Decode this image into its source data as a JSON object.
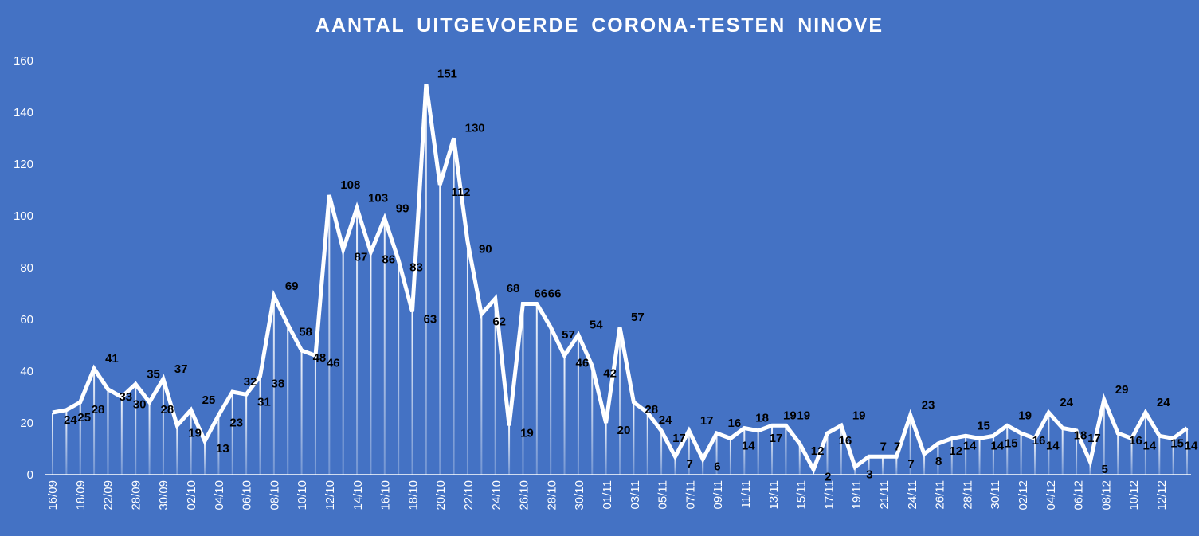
{
  "chart_data": {
    "type": "line",
    "title": "AANTAL UITGEVOERDE  CORONA-TESTEN NINOVE",
    "xlabel": "",
    "ylabel": "",
    "ylim": [
      0,
      160
    ],
    "yticks": [
      0,
      20,
      40,
      60,
      80,
      100,
      120,
      140,
      160
    ],
    "grid": false,
    "legend": "none",
    "colors": {
      "background": "#4472C4",
      "line": "#FFFFFF",
      "labels": "#000000",
      "axis_text": "#FFFFFF"
    },
    "x_tick_labels": [
      "16/09",
      "18/09",
      "22/09",
      "28/09",
      "30/09",
      "02/10",
      "04/10",
      "06/10",
      "08/10",
      "10/10",
      "12/10",
      "14/10",
      "16/10",
      "18/10",
      "20/10",
      "22/10",
      "24/10",
      "26/10",
      "28/10",
      "30/10",
      "01/11",
      "03/11",
      "05/11",
      "07/11",
      "09/11",
      "11/11",
      "13/11",
      "15/11",
      "17/11",
      "19/11",
      "21/11",
      "24/11",
      "26/11",
      "28/11",
      "30/11",
      "02/12",
      "04/12",
      "06/12",
      "08/12",
      "10/12",
      "12/12"
    ],
    "values": [
      24,
      25,
      28,
      41,
      33,
      30,
      35,
      28,
      37,
      19,
      25,
      13,
      23,
      32,
      31,
      38,
      69,
      58,
      48,
      46,
      108,
      87,
      103,
      86,
      99,
      83,
      63,
      151,
      112,
      130,
      90,
      62,
      68,
      19,
      66,
      66,
      57,
      46,
      54,
      42,
      20,
      57,
      28,
      24,
      17,
      7,
      17,
      6,
      16,
      14,
      18,
      17,
      19,
      19,
      12,
      2,
      16,
      19,
      3,
      7,
      7,
      7,
      23,
      8,
      12,
      14,
      15,
      14,
      15,
      19,
      16,
      14,
      24,
      18,
      17,
      5,
      29,
      16,
      14,
      24,
      15,
      14,
      18
    ]
  }
}
